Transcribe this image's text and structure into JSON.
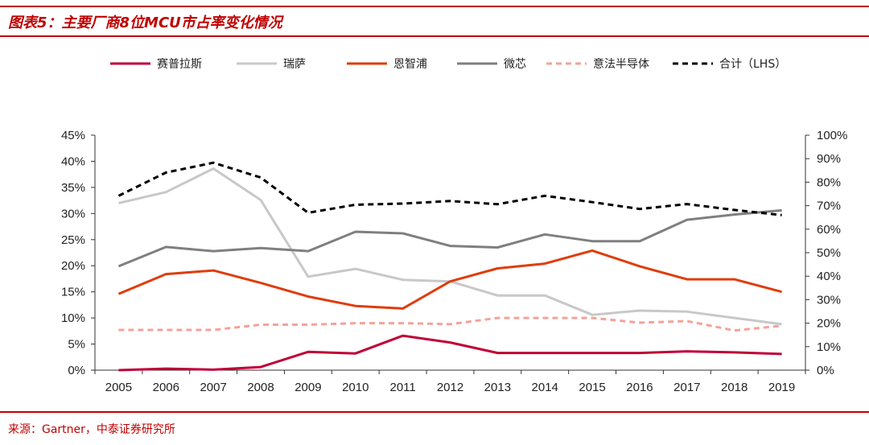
{
  "header": {
    "title": "图表5：主要厂商8位MCU市占率变化情况"
  },
  "footer": {
    "source": "来源：Gartner，中泰证券研究所"
  },
  "colors": {
    "accent": "#c00000"
  },
  "chart_data": {
    "type": "line",
    "categories": [
      "2005",
      "2006",
      "2007",
      "2008",
      "2009",
      "2010",
      "2011",
      "2012",
      "2013",
      "2014",
      "2015",
      "2016",
      "2017",
      "2018",
      "2019"
    ],
    "y_left": {
      "range": [
        0,
        45
      ],
      "ticks": [
        "0%",
        "5%",
        "10%",
        "15%",
        "20%",
        "25%",
        "30%",
        "35%",
        "40%",
        "45%"
      ]
    },
    "y_right": {
      "range": [
        0,
        100
      ],
      "ticks": [
        "0%",
        "10%",
        "20%",
        "30%",
        "40%",
        "50%",
        "60%",
        "70%",
        "80%",
        "90%",
        "100%"
      ]
    },
    "grid": false,
    "legend_position": "top",
    "series": [
      {
        "name": "赛普拉斯",
        "axis": "left",
        "color": "#c00037",
        "style": "solid",
        "values": [
          0.0,
          0.3,
          0.1,
          0.6,
          3.5,
          3.2,
          6.6,
          5.3,
          3.3,
          3.3,
          3.3,
          3.3,
          3.6,
          3.4,
          3.1
        ]
      },
      {
        "name": "瑞萨",
        "axis": "left",
        "color": "#c8c8c8",
        "style": "solid",
        "values": [
          32.0,
          34.1,
          38.6,
          32.6,
          17.9,
          19.4,
          17.3,
          17.0,
          14.3,
          14.3,
          10.6,
          11.4,
          11.2,
          10.0,
          8.8
        ]
      },
      {
        "name": "恩智浦",
        "axis": "left",
        "color": "#e03c0a",
        "style": "solid",
        "values": [
          14.6,
          18.4,
          19.1,
          16.7,
          14.1,
          12.3,
          11.8,
          17.0,
          19.5,
          20.4,
          22.9,
          19.9,
          17.4,
          17.4,
          15.0
        ]
      },
      {
        "name": "微芯",
        "axis": "left",
        "color": "#7f7f7f",
        "style": "solid",
        "values": [
          19.9,
          23.6,
          22.8,
          23.4,
          22.8,
          26.5,
          26.2,
          23.8,
          23.5,
          26.0,
          24.7,
          24.7,
          28.8,
          29.8,
          30.6
        ]
      },
      {
        "name": "意法半导体",
        "axis": "left",
        "color": "#f4a29a",
        "style": "dashed",
        "values": [
          7.7,
          7.7,
          7.7,
          8.7,
          8.7,
          9.0,
          9.0,
          8.8,
          10.0,
          10.0,
          10.0,
          9.1,
          9.4,
          7.6,
          8.5
        ]
      },
      {
        "name": "合计（LHS）",
        "axis": "right",
        "color": "#000000",
        "style": "dashed",
        "values": [
          74.2,
          84.1,
          88.3,
          82.0,
          67.0,
          70.4,
          70.9,
          72.0,
          70.6,
          74.2,
          71.5,
          68.6,
          70.7,
          68.2,
          66.0
        ]
      }
    ]
  }
}
